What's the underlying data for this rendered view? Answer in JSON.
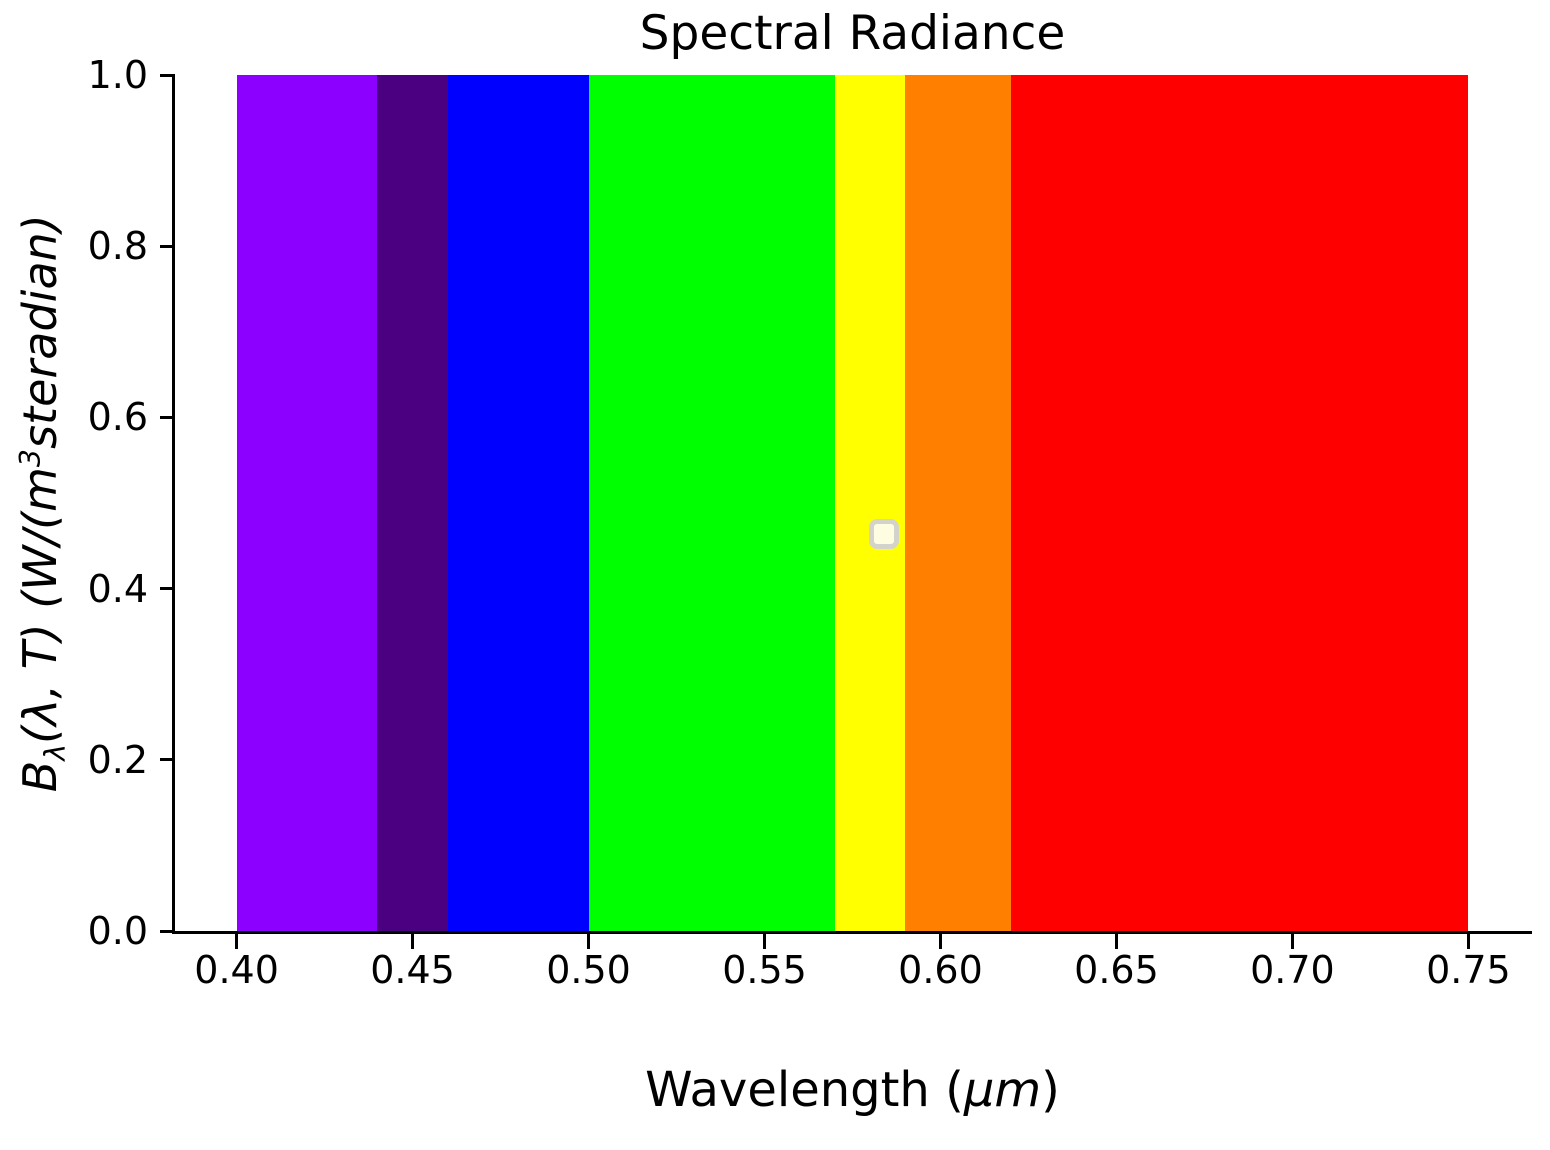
{
  "figure": {
    "background": "#FFFFFF",
    "text_color": "#000000"
  },
  "chart_data": {
    "type": "bar",
    "title": "Spectral Radiance",
    "xlabel": "Wavelength (μm)",
    "ylabel": "B_λ(λ, T) (W/(m³steradian)",
    "xlim": [
      0.3825,
      0.7675
    ],
    "ylim": [
      0.0,
      1.0
    ],
    "grid": false,
    "legend": false,
    "x_ticks": {
      "values": [
        0.4,
        0.45,
        0.5,
        0.55,
        0.6,
        0.65,
        0.7,
        0.75
      ],
      "labels": [
        "0.40",
        "0.45",
        "0.50",
        "0.55",
        "0.60",
        "0.65",
        "0.70",
        "0.75"
      ]
    },
    "y_ticks": {
      "values": [
        0.0,
        0.2,
        0.4,
        0.6,
        0.8,
        1.0
      ],
      "labels": [
        "0.0",
        "0.2",
        "0.4",
        "0.6",
        "0.8",
        "1.0"
      ]
    },
    "bands": [
      {
        "name": "violet",
        "start_um": 0.4,
        "end_um": 0.44,
        "height": 1.0,
        "color": "#8B00FF"
      },
      {
        "name": "indigo",
        "start_um": 0.44,
        "end_um": 0.46,
        "height": 1.0,
        "color": "#4B0082"
      },
      {
        "name": "blue",
        "start_um": 0.46,
        "end_um": 0.5,
        "height": 1.0,
        "color": "#0000FF"
      },
      {
        "name": "green",
        "start_um": 0.5,
        "end_um": 0.57,
        "height": 1.0,
        "color": "#00FF00"
      },
      {
        "name": "yellow",
        "start_um": 0.57,
        "end_um": 0.59,
        "height": 1.0,
        "color": "#FFFF00"
      },
      {
        "name": "orange",
        "start_um": 0.59,
        "end_um": 0.62,
        "height": 1.0,
        "color": "#FF8000"
      },
      {
        "name": "red",
        "start_um": 0.62,
        "end_um": 0.75,
        "height": 1.0,
        "color": "#FF0000"
      }
    ],
    "marker": {
      "x_um": 0.584,
      "y": 0.464,
      "shape": "rounded-square",
      "fill_color": "#FFFDE1",
      "edge_color": "#D3D3CB"
    }
  },
  "labels": {
    "title": "Spectral Radiance",
    "xlabel_parts": [
      {
        "text": "Wavelength (",
        "style": "normal"
      },
      {
        "text": "μm",
        "style": "italic"
      },
      {
        "text": ")",
        "style": "normal"
      }
    ],
    "ylabel_parts": [
      {
        "text": "B",
        "style": "italic"
      },
      {
        "text": "λ",
        "style": "sub"
      },
      {
        "text": "(λ, T) (W/(m",
        "style": "italic"
      },
      {
        "text": "3",
        "style": "sup"
      },
      {
        "text": "steradian)",
        "style": "italic"
      }
    ]
  }
}
